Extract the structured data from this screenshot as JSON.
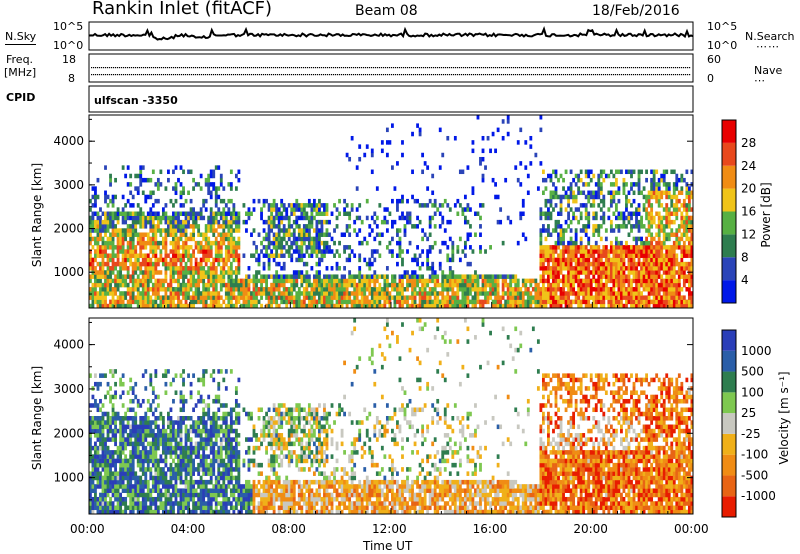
{
  "header": {
    "station": "Rankin Inlet (fitACF)",
    "beam": "Beam 08",
    "date": "18/Feb/2016"
  },
  "status": {
    "nsky_label": "N.Sky",
    "nsearch_label": "N.Search",
    "noise_ticks": [
      "10^5",
      "10^0"
    ],
    "freq_label_1": "Freq.",
    "freq_label_2": "[MHz]",
    "freq_ticks": [
      "18",
      "8"
    ],
    "nave_label": "Nave",
    "nave_ticks": [
      "60",
      "0"
    ],
    "cpid_label": "CPID",
    "cpid_text": "ulfscan -3350"
  },
  "colors": {
    "power": [
      "#0018e8",
      "#2a44b8",
      "#2e7d4f",
      "#57b043",
      "#f0c419",
      "#f08c14",
      "#e8481c",
      "#e80000"
    ],
    "velocity": [
      "#2a3eb8",
      "#2a5ea8",
      "#2e7d4f",
      "#7ec850",
      "#c8c8c0",
      "#f0b019",
      "#f08c14",
      "#e86414",
      "#e81c00"
    ]
  },
  "chart_data": [
    {
      "type": "heatmap",
      "name": "power-panel",
      "xlabel": "Time UT",
      "ylabel": "Slant Range [km]",
      "x_ticks": [
        "00:00",
        "04:00",
        "08:00",
        "12:00",
        "16:00",
        "20:00",
        "00:00"
      ],
      "y_ticks": [
        "1000",
        "2000",
        "3000",
        "4000"
      ],
      "xlim": [
        0,
        24
      ],
      "ylim": [
        180,
        4600
      ],
      "colorbar": {
        "label": "Power [dB]",
        "ticks": [
          "4",
          "8",
          "12",
          "16",
          "20",
          "24",
          "28"
        ],
        "range": [
          0,
          32
        ]
      },
      "regions": [
        {
          "t": [
            0.1,
            6.0
          ],
          "r": [
            200,
            3000
          ],
          "level": "moderate-to-high",
          "note": "strong scatter blobs near 1000-2000 km"
        },
        {
          "t": [
            0.1,
            24.0
          ],
          "r": [
            200,
            900
          ],
          "level": "moderate",
          "note": "near-range band"
        },
        {
          "t": [
            6.0,
            17.0
          ],
          "r": [
            200,
            2600
          ],
          "level": "low-to-moderate",
          "note": "patchy scatter"
        },
        {
          "t": [
            18.0,
            24.0
          ],
          "r": [
            200,
            3300
          ],
          "level": "moderate-to-high",
          "note": "enhanced power near 1000 km"
        }
      ]
    },
    {
      "type": "heatmap",
      "name": "velocity-panel",
      "xlabel": "Time UT",
      "ylabel": "Slant Range [km]",
      "x_ticks": [
        "00:00",
        "04:00",
        "08:00",
        "12:00",
        "16:00",
        "20:00",
        "00:00"
      ],
      "y_ticks": [
        "1000",
        "2000",
        "3000",
        "4000"
      ],
      "xlim": [
        0,
        24
      ],
      "ylim": [
        180,
        4600
      ],
      "colorbar": {
        "label": "Velocity [m s⁻¹]",
        "ticks": [
          "1000",
          "500",
          "100",
          "25",
          "-25",
          "-100",
          "-500",
          "-1000"
        ]
      },
      "regions": [
        {
          "t": [
            0.1,
            6.0
          ],
          "r": [
            600,
            2600
          ],
          "level": "toward (blue/green)",
          "note": "positive velocities"
        },
        {
          "t": [
            6.0,
            17.0
          ],
          "r": [
            200,
            2500
          ],
          "level": "mixed",
          "note": "green and orange patches"
        },
        {
          "t": [
            10.5,
            16.5
          ],
          "r": [
            200,
            900
          ],
          "level": "away (orange)",
          "note": "negative velocities"
        },
        {
          "t": [
            18.0,
            24.0
          ],
          "r": [
            200,
            3300
          ],
          "level": "away (orange/red)",
          "note": "strong negative velocities"
        }
      ]
    },
    {
      "type": "line",
      "name": "noise-panel",
      "series": [
        {
          "name": "N.Sky"
        },
        {
          "name": "N.Search"
        }
      ]
    },
    {
      "type": "scatter",
      "name": "freq-nave-panel",
      "series": [
        {
          "name": "Freq."
        },
        {
          "name": "Nave"
        }
      ]
    }
  ]
}
